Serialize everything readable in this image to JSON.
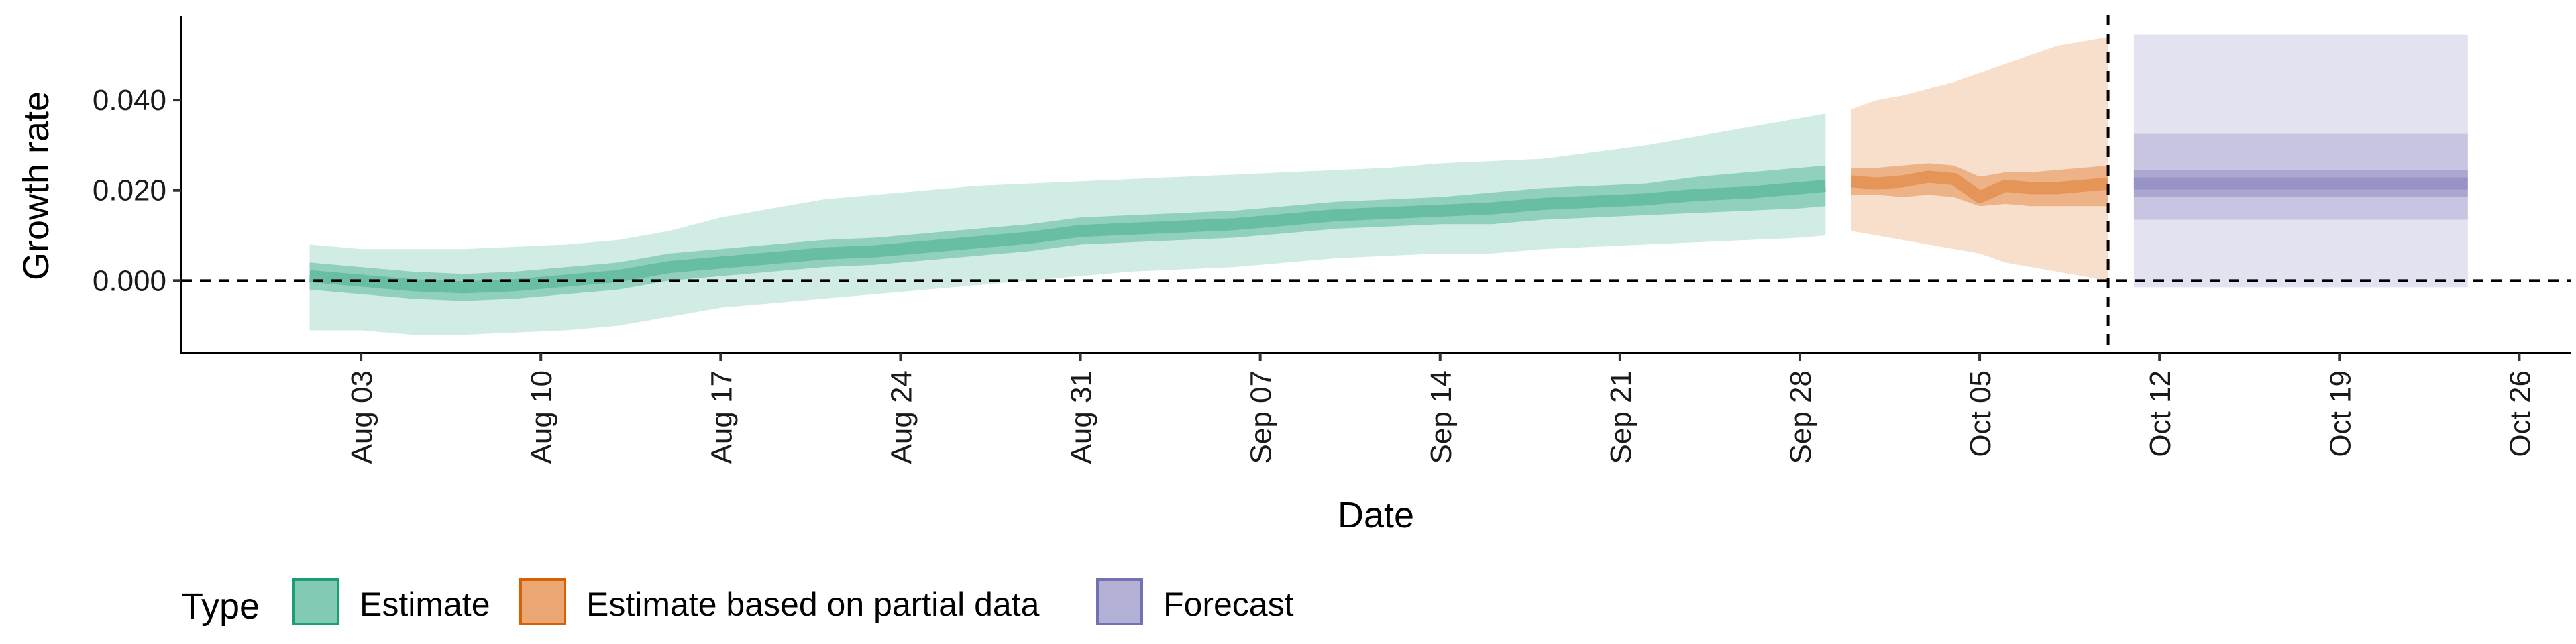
{
  "chart_data": {
    "type": "area",
    "xlabel": "Date",
    "ylabel": "Growth rate",
    "x_range": [
      "2020-07-27",
      "2020-10-28"
    ],
    "ylim": [
      -0.016,
      0.058
    ],
    "y_ticks": [
      0.0,
      0.02,
      0.04
    ],
    "y_tick_labels": [
      "0.000",
      "0.020",
      "0.040"
    ],
    "x_tick_dates": [
      "2020-08-03",
      "2020-08-10",
      "2020-08-17",
      "2020-08-24",
      "2020-08-31",
      "2020-09-07",
      "2020-09-14",
      "2020-09-21",
      "2020-09-28",
      "2020-10-05",
      "2020-10-12",
      "2020-10-19",
      "2020-10-26"
    ],
    "x_tick_labels": [
      "Aug 03",
      "Aug 10",
      "Aug 17",
      "Aug 24",
      "Aug 31",
      "Sep 07",
      "Sep 14",
      "Sep 21",
      "Sep 28",
      "Oct 05",
      "Oct 12",
      "Oct 19",
      "Oct 26"
    ],
    "hline_y": 0.0,
    "vline_date": "2020-10-10",
    "grid": false,
    "legend": {
      "title": "Type",
      "position": "bottom-left",
      "entries": [
        "Estimate",
        "Estimate based on partial data",
        "Forecast"
      ]
    },
    "colors": {
      "Estimate": "#1b9e77",
      "Estimate based on partial data": "#d95f02",
      "Forecast": "#7570b3"
    },
    "series": [
      {
        "name": "Estimate",
        "color": "#1b9e77",
        "dates": [
          "2020-08-01",
          "2020-08-03",
          "2020-08-05",
          "2020-08-07",
          "2020-08-09",
          "2020-08-11",
          "2020-08-13",
          "2020-08-15",
          "2020-08-17",
          "2020-08-19",
          "2020-08-21",
          "2020-08-23",
          "2020-08-25",
          "2020-08-27",
          "2020-08-29",
          "2020-08-31",
          "2020-09-02",
          "2020-09-04",
          "2020-09-06",
          "2020-09-08",
          "2020-09-10",
          "2020-09-12",
          "2020-09-14",
          "2020-09-16",
          "2020-09-18",
          "2020-09-20",
          "2020-09-22",
          "2020-09-24",
          "2020-09-26",
          "2020-09-28",
          "2020-09-29"
        ],
        "median": [
          0.001,
          0.0,
          -0.001,
          -0.0015,
          -0.001,
          0.0,
          0.001,
          0.003,
          0.004,
          0.005,
          0.006,
          0.0065,
          0.0075,
          0.0085,
          0.0095,
          0.011,
          0.0115,
          0.012,
          0.0125,
          0.0135,
          0.0145,
          0.015,
          0.0155,
          0.016,
          0.017,
          0.0175,
          0.018,
          0.019,
          0.0195,
          0.0205,
          0.021
        ],
        "lower_50": [
          -0.002,
          -0.003,
          -0.004,
          -0.0045,
          -0.004,
          -0.003,
          -0.002,
          0.0,
          0.001,
          0.002,
          0.003,
          0.0035,
          0.0045,
          0.0055,
          0.0065,
          0.008,
          0.0085,
          0.009,
          0.0095,
          0.0105,
          0.0115,
          0.012,
          0.0125,
          0.0125,
          0.0135,
          0.014,
          0.0145,
          0.015,
          0.0155,
          0.016,
          0.0165
        ],
        "upper_50": [
          0.004,
          0.003,
          0.002,
          0.0015,
          0.002,
          0.003,
          0.004,
          0.006,
          0.007,
          0.008,
          0.009,
          0.0095,
          0.0105,
          0.0115,
          0.0125,
          0.014,
          0.0145,
          0.015,
          0.0155,
          0.0165,
          0.0175,
          0.018,
          0.0185,
          0.0195,
          0.0205,
          0.021,
          0.0215,
          0.023,
          0.024,
          0.025,
          0.0255
        ],
        "lower_90": [
          -0.011,
          -0.011,
          -0.012,
          -0.012,
          -0.0115,
          -0.011,
          -0.01,
          -0.008,
          -0.006,
          -0.005,
          -0.004,
          -0.003,
          -0.002,
          -0.001,
          0.0,
          0.001,
          0.002,
          0.0025,
          0.003,
          0.004,
          0.005,
          0.0055,
          0.006,
          0.006,
          0.007,
          0.0075,
          0.008,
          0.0085,
          0.009,
          0.0095,
          0.01
        ],
        "upper_90": [
          0.008,
          0.007,
          0.007,
          0.007,
          0.0075,
          0.008,
          0.009,
          0.011,
          0.014,
          0.016,
          0.018,
          0.019,
          0.02,
          0.021,
          0.0215,
          0.022,
          0.0225,
          0.023,
          0.0235,
          0.024,
          0.0245,
          0.025,
          0.026,
          0.0265,
          0.027,
          0.0285,
          0.03,
          0.032,
          0.034,
          0.036,
          0.037
        ]
      },
      {
        "name": "Estimate based on partial data",
        "color": "#d95f02",
        "dates": [
          "2020-09-30",
          "2020-10-01",
          "2020-10-02",
          "2020-10-03",
          "2020-10-04",
          "2020-10-05",
          "2020-10-06",
          "2020-10-07",
          "2020-10-08",
          "2020-10-09",
          "2020-10-10"
        ],
        "median": [
          0.022,
          0.0215,
          0.022,
          0.023,
          0.0225,
          0.0185,
          0.021,
          0.0205,
          0.0205,
          0.021,
          0.0215
        ],
        "lower_50": [
          0.019,
          0.019,
          0.0185,
          0.019,
          0.0185,
          0.0165,
          0.017,
          0.0165,
          0.0165,
          0.0165,
          0.0165
        ],
        "upper_50": [
          0.025,
          0.025,
          0.0255,
          0.026,
          0.0255,
          0.023,
          0.024,
          0.024,
          0.0245,
          0.025,
          0.0255
        ],
        "lower_90": [
          0.011,
          0.01,
          0.009,
          0.008,
          0.007,
          0.006,
          0.004,
          0.003,
          0.002,
          0.001,
          0.0
        ],
        "upper_90": [
          0.038,
          0.04,
          0.041,
          0.0425,
          0.044,
          0.046,
          0.048,
          0.05,
          0.052,
          0.053,
          0.054
        ]
      },
      {
        "name": "Forecast",
        "color": "#7570b3",
        "dates": [
          "2020-10-11",
          "2020-10-24"
        ],
        "median": [
          0.0215,
          0.0215
        ],
        "lower_50": [
          0.0185,
          0.0185
        ],
        "upper_50": [
          0.0245,
          0.0245
        ],
        "lower_80": [
          0.0135,
          0.0135
        ],
        "upper_80": [
          0.0325,
          0.0325
        ],
        "lower_90": [
          -0.0015,
          -0.0015
        ],
        "upper_90": [
          0.0545,
          0.0545
        ]
      }
    ]
  }
}
